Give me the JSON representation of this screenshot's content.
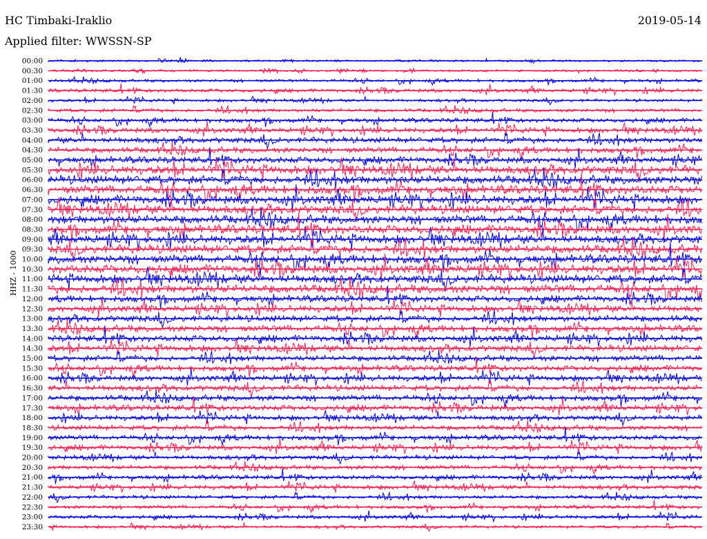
{
  "header": {
    "station": "HC Timbaki-Iraklio",
    "date": "2019-05-14",
    "filter": "Applied filter: WWSSN-SP",
    "channel": "HHZ - 1000"
  },
  "chart_data": {
    "type": "line",
    "title": "HC Timbaki-Iraklio",
    "subtitle": "Applied filter: WWSSN-SP",
    "ylabel": "HHZ - 1000",
    "xlabel": "",
    "colors": [
      "#0000ee",
      "#ff1a4d"
    ],
    "rows": [
      "00:00",
      "00:30",
      "01:00",
      "01:30",
      "02:00",
      "02:30",
      "03:00",
      "03:30",
      "04:00",
      "04:30",
      "05:00",
      "05:30",
      "06:00",
      "06:30",
      "07:00",
      "07:30",
      "08:00",
      "08:30",
      "09:00",
      "09:30",
      "10:00",
      "10:30",
      "11:00",
      "11:30",
      "12:00",
      "12:30",
      "13:00",
      "13:30",
      "14:00",
      "14:30",
      "15:00",
      "15:30",
      "16:00",
      "16:30",
      "17:00",
      "17:30",
      "18:00",
      "18:30",
      "19:00",
      "19:30",
      "20:00",
      "20:30",
      "21:00",
      "21:30",
      "22:00",
      "22:30",
      "23:00",
      "23:30"
    ],
    "series": [
      {
        "color": "blue",
        "rows": "even"
      },
      {
        "color": "red",
        "rows": "odd"
      }
    ],
    "relative_amplitude": [
      1.5,
      1.5,
      2,
      2.5,
      2,
      2.5,
      3,
      3.5,
      4,
      4,
      4.5,
      6,
      6,
      6,
      6,
      6,
      6,
      6,
      6,
      6,
      6,
      6,
      6,
      6,
      4.5,
      4.5,
      4.5,
      4.5,
      4.5,
      4.5,
      4,
      4,
      4,
      4,
      4,
      4,
      3.5,
      3.5,
      3.5,
      3.5,
      3,
      3,
      3,
      3,
      2.5,
      2.5,
      2.5,
      2
    ]
  }
}
